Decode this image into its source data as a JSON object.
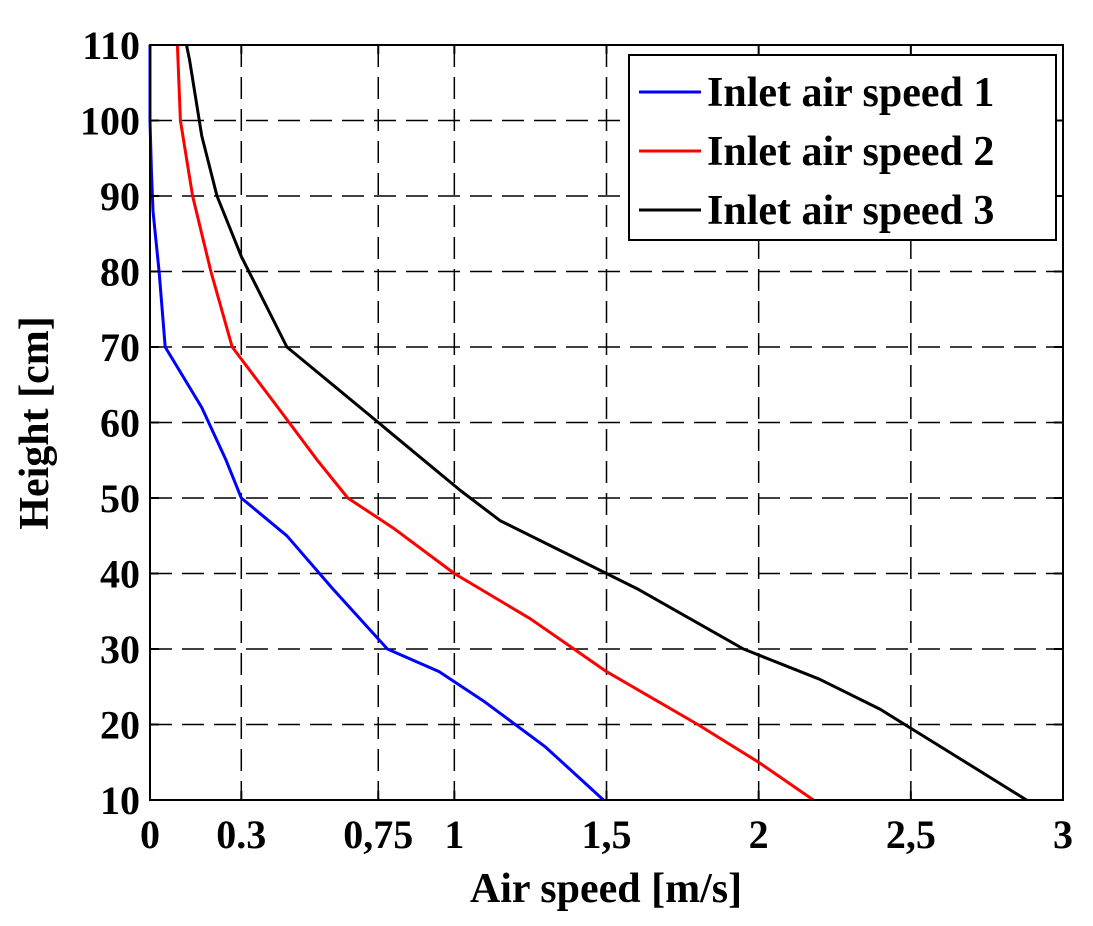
{
  "chart_data": {
    "type": "line",
    "title": "",
    "xlabel": "Air speed [m/s]",
    "ylabel": "Height [cm]",
    "xlim": [
      0,
      3
    ],
    "ylim": [
      10,
      110
    ],
    "grid": true,
    "legend_position": "top-right",
    "x_ticks": [
      {
        "value": 0,
        "label": "0"
      },
      {
        "value": 0.3,
        "label": "0.3"
      },
      {
        "value": 0.75,
        "label": "0,75"
      },
      {
        "value": 1,
        "label": "1"
      },
      {
        "value": 1.5,
        "label": "1,5"
      },
      {
        "value": 2,
        "label": "2"
      },
      {
        "value": 2.5,
        "label": "2,5"
      },
      {
        "value": 3,
        "label": "3"
      }
    ],
    "y_ticks": [
      {
        "value": 10,
        "label": "10"
      },
      {
        "value": 20,
        "label": "20"
      },
      {
        "value": 30,
        "label": "30"
      },
      {
        "value": 40,
        "label": "40"
      },
      {
        "value": 50,
        "label": "50"
      },
      {
        "value": 60,
        "label": "60"
      },
      {
        "value": 70,
        "label": "70"
      },
      {
        "value": 80,
        "label": "80"
      },
      {
        "value": 90,
        "label": "90"
      },
      {
        "value": 100,
        "label": "100"
      },
      {
        "value": 110,
        "label": "110"
      }
    ],
    "series": [
      {
        "name": "Inlet air speed 1",
        "color": "#0000ff",
        "points": [
          [
            1.49,
            10
          ],
          [
            1.3,
            17
          ],
          [
            1.1,
            23
          ],
          [
            0.95,
            27
          ],
          [
            0.78,
            30
          ],
          [
            0.6,
            38
          ],
          [
            0.45,
            45
          ],
          [
            0.3,
            50
          ],
          [
            0.25,
            55
          ],
          [
            0.17,
            62
          ],
          [
            0.05,
            70
          ],
          [
            0.03,
            80
          ],
          [
            0.01,
            88
          ],
          [
            0.005,
            93
          ],
          [
            0,
            100
          ],
          [
            0,
            110
          ]
        ]
      },
      {
        "name": "Inlet air speed 2",
        "color": "#ff0000",
        "points": [
          [
            2.18,
            10
          ],
          [
            2.0,
            15
          ],
          [
            1.8,
            20
          ],
          [
            1.5,
            27
          ],
          [
            1.25,
            34
          ],
          [
            1.0,
            40
          ],
          [
            0.8,
            46
          ],
          [
            0.65,
            50
          ],
          [
            0.55,
            55
          ],
          [
            0.42,
            62
          ],
          [
            0.27,
            70
          ],
          [
            0.2,
            80
          ],
          [
            0.14,
            90
          ],
          [
            0.1,
            100
          ],
          [
            0.09,
            110
          ]
        ]
      },
      {
        "name": "Inlet air speed 3",
        "color": "#000000",
        "points": [
          [
            2.88,
            10
          ],
          [
            2.6,
            17
          ],
          [
            2.4,
            22
          ],
          [
            2.2,
            26
          ],
          [
            1.95,
            30
          ],
          [
            1.6,
            38
          ],
          [
            1.4,
            42
          ],
          [
            1.15,
            47
          ],
          [
            1.02,
            51
          ],
          [
            0.9,
            55
          ],
          [
            0.72,
            61
          ],
          [
            0.6,
            65
          ],
          [
            0.45,
            70
          ],
          [
            0.3,
            82
          ],
          [
            0.22,
            90
          ],
          [
            0.17,
            98
          ],
          [
            0.13,
            108
          ],
          [
            0.12,
            110
          ]
        ]
      }
    ]
  }
}
